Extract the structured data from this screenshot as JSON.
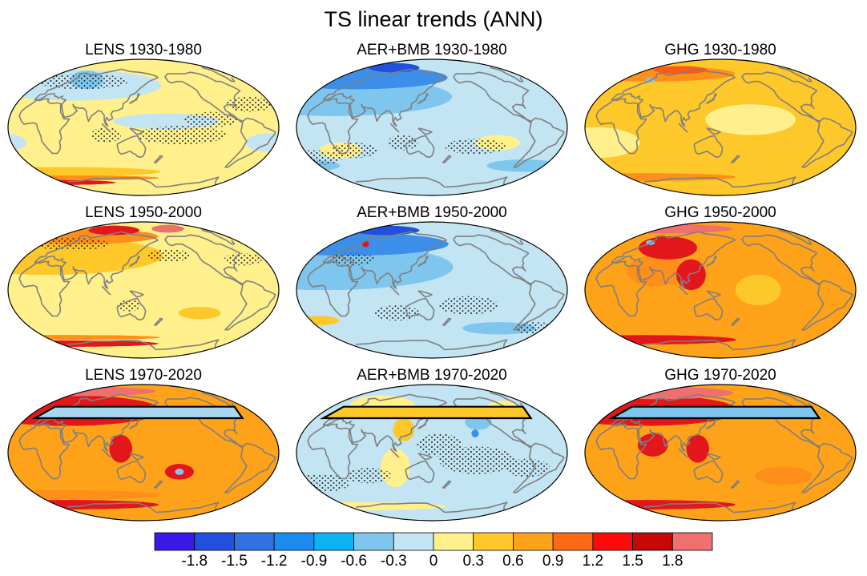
{
  "figure": {
    "title": "TS linear trends (ANN)"
  },
  "panels": [
    {
      "id": "lens-1930",
      "title": "LENS 1930-1980",
      "scenario": "LENS",
      "period": "1930-1980",
      "base": "#fff08c",
      "blobs": [
        {
          "c": "#c2e4f3",
          "lon": 180,
          "lat": 8,
          "rlon": 70,
          "rlat": 10
        },
        {
          "c": "#c2e4f3",
          "lon": 30,
          "lat": 55,
          "rlon": 150,
          "rlat": 20
        },
        {
          "c": "#7fc6ee",
          "lon": 45,
          "lat": 62,
          "rlon": 30,
          "rlat": 12
        },
        {
          "c": "#c2e4f3",
          "lon": -40,
          "lat": -20,
          "rlon": 30,
          "rlat": 12
        },
        {
          "c": "#fec72a",
          "lon": 0,
          "lat": -58,
          "rlon": 180,
          "rlat": 6
        },
        {
          "c": "#fe8f1a",
          "lon": 0,
          "lat": -66,
          "rlon": 180,
          "rlat": 3
        },
        {
          "c": "#e3161c",
          "lon": -30,
          "lat": -72,
          "rlon": 120,
          "rlat": 3
        }
      ],
      "stipple": true,
      "box": false
    },
    {
      "id": "aer-1930",
      "title": "AER+BMB 1930-1980",
      "scenario": "AER+BMB",
      "period": "1930-1980",
      "base": "#c2e4f3",
      "blobs": [
        {
          "c": "#7fc6ee",
          "lon": 0,
          "lat": 40,
          "rlon": 180,
          "rlat": 25
        },
        {
          "c": "#3b8fe8",
          "lon": 0,
          "lat": 65,
          "rlon": 180,
          "rlat": 15
        },
        {
          "c": "#2050dc",
          "lon": 60,
          "lat": 78,
          "rlon": 60,
          "rlat": 6
        },
        {
          "c": "#fff08c",
          "lon": -120,
          "lat": -20,
          "rlon": 30,
          "rlat": 10
        },
        {
          "c": "#fff08c",
          "lon": 20,
          "lat": -30,
          "rlon": 30,
          "rlat": 10
        },
        {
          "c": "#7fc6ee",
          "lon": -60,
          "lat": -50,
          "rlon": 60,
          "rlat": 8
        }
      ],
      "stipple": true,
      "box": false
    },
    {
      "id": "ghg-1930",
      "title": "GHG 1930-1980",
      "scenario": "GHG",
      "period": "1930-1980",
      "base": "#fec72a",
      "blobs": [
        {
          "c": "#fff08c",
          "lon": -170,
          "lat": 10,
          "rlon": 60,
          "rlat": 20
        },
        {
          "c": "#fff08c",
          "lon": -20,
          "lat": -20,
          "rlon": 60,
          "rlat": 20
        },
        {
          "c": "#fe8f1a",
          "lon": 0,
          "lat": 70,
          "rlon": 180,
          "rlat": 10
        },
        {
          "c": "#fe5a14",
          "lon": 60,
          "lat": 75,
          "rlon": 60,
          "rlat": 5
        },
        {
          "c": "#fe8f1a",
          "lon": 0,
          "lat": -65,
          "rlon": 180,
          "rlat": 5
        },
        {
          "c": "#7fc6ee",
          "lon": 20,
          "lat": 62,
          "rlon": 8,
          "rlat": 3
        }
      ],
      "stipple": false,
      "box": false
    },
    {
      "id": "lens-1950",
      "title": "LENS 1950-2000",
      "scenario": "LENS",
      "period": "1950-2000",
      "base": "#fff08c",
      "blobs": [
        {
          "c": "#fec72a",
          "lon": 0,
          "lat": 45,
          "rlon": 180,
          "rlat": 25
        },
        {
          "c": "#fe8f1a",
          "lon": 0,
          "lat": 70,
          "rlon": 180,
          "rlat": 10
        },
        {
          "c": "#e3161c",
          "lon": 80,
          "lat": 78,
          "rlon": 60,
          "rlat": 6
        },
        {
          "c": "#f07070",
          "lon": -150,
          "lat": 80,
          "rlon": 40,
          "rlat": 5
        },
        {
          "c": "#fec72a",
          "lon": -130,
          "lat": -30,
          "rlon": 30,
          "rlat": 8
        },
        {
          "c": "#e3161c",
          "lon": 0,
          "lat": -70,
          "rlon": 180,
          "rlat": 4
        },
        {
          "c": "#fe8f1a",
          "lon": 0,
          "lat": -62,
          "rlon": 180,
          "rlat": 3
        }
      ],
      "stipple": true,
      "box": false
    },
    {
      "id": "aer-1950",
      "title": "AER+BMB 1950-2000",
      "scenario": "AER+BMB",
      "period": "1950-2000",
      "base": "#c2e4f3",
      "blobs": [
        {
          "c": "#7fc6ee",
          "lon": 0,
          "lat": 30,
          "rlon": 180,
          "rlat": 30
        },
        {
          "c": "#3b8fe8",
          "lon": 0,
          "lat": 60,
          "rlon": 180,
          "rlat": 15
        },
        {
          "c": "#2050dc",
          "lon": 40,
          "lat": 78,
          "rlon": 80,
          "rlat": 6
        },
        {
          "c": "#e3161c",
          "lon": 30,
          "lat": 60,
          "rlon": 6,
          "rlat": 4
        },
        {
          "c": "#fec72a",
          "lon": -20,
          "lat": -40,
          "rlon": 30,
          "rlat": 6
        },
        {
          "c": "#7fc6ee",
          "lon": -100,
          "lat": -50,
          "rlon": 60,
          "rlat": 8
        }
      ],
      "stipple": true,
      "box": false
    },
    {
      "id": "ghg-1950",
      "title": "GHG 1950-2000",
      "scenario": "GHG",
      "period": "1950-2000",
      "base": "#fea21a",
      "blobs": [
        {
          "c": "#fec72a",
          "lon": -160,
          "lat": 0,
          "rlon": 30,
          "rlat": 20
        },
        {
          "c": "#fe8f1a",
          "lon": 60,
          "lat": 25,
          "rlon": 40,
          "rlat": 20
        },
        {
          "c": "#e3161c",
          "lon": 60,
          "lat": 55,
          "rlon": 50,
          "rlat": 15
        },
        {
          "c": "#e3161c",
          "lon": 110,
          "lat": 20,
          "rlon": 20,
          "rlat": 20
        },
        {
          "c": "#f07070",
          "lon": 0,
          "lat": 80,
          "rlon": 180,
          "rlat": 6
        },
        {
          "c": "#e3161c",
          "lon": 0,
          "lat": -65,
          "rlon": 180,
          "rlat": 6
        },
        {
          "c": "#7fc6ee",
          "lon": 20,
          "lat": 62,
          "rlon": 8,
          "rlat": 3
        }
      ],
      "stipple": false,
      "box": false
    },
    {
      "id": "lens-1970",
      "title": "LENS 1970-2020",
      "scenario": "LENS",
      "period": "1970-2020",
      "base": "#fea21a",
      "blobs": [
        {
          "c": "#e3161c",
          "lon": 20,
          "lat": 55,
          "rlon": 160,
          "rlat": 20
        },
        {
          "c": "#f07070",
          "lon": 0,
          "lat": 80,
          "rlon": 180,
          "rlat": 6
        },
        {
          "c": "#e3161c",
          "lon": 120,
          "lat": 5,
          "rlon": 15,
          "rlat": 18
        },
        {
          "c": "#e3161c",
          "lon": -160,
          "lat": -25,
          "rlon": 20,
          "rlat": 10
        },
        {
          "c": "#7fc6ee",
          "lon": -160,
          "lat": -25,
          "rlon": 6,
          "rlat": 4
        },
        {
          "c": "#e3161c",
          "lon": 0,
          "lat": -68,
          "rlon": 180,
          "rlat": 6
        },
        {
          "c": "#fe8f1a",
          "lon": 0,
          "lat": -55,
          "rlon": 180,
          "rlat": 6
        }
      ],
      "stipple": false,
      "box": true,
      "box_fill": "#a8d8f0"
    },
    {
      "id": "aer-1970",
      "title": "AER+BMB 1970-2020",
      "scenario": "AER+BMB",
      "period": "1970-2020",
      "base": "#c2e4f3",
      "blobs": [
        {
          "c": "#fff08c",
          "lon": 60,
          "lat": 60,
          "rlon": 60,
          "rlat": 15
        },
        {
          "c": "#fec72a",
          "lon": 110,
          "lat": 30,
          "rlon": 15,
          "rlat": 15
        },
        {
          "c": "#fff08c",
          "lon": 100,
          "lat": -20,
          "rlon": 20,
          "rlat": 25
        },
        {
          "c": "#7fc6ee",
          "lon": -140,
          "lat": 40,
          "rlon": 20,
          "rlat": 10
        },
        {
          "c": "#3b8fe8",
          "lon": -150,
          "lat": 25,
          "rlon": 5,
          "rlat": 5
        },
        {
          "c": "#fff08c",
          "lon": 0,
          "lat": -70,
          "rlon": 180,
          "rlat": 5
        },
        {
          "c": "#fff08c",
          "lon": -80,
          "lat": 60,
          "rlon": 30,
          "rlat": 8
        }
      ],
      "stipple": true,
      "box": true,
      "box_fill": "#fec72a"
    },
    {
      "id": "ghg-1970",
      "title": "GHG 1970-2020",
      "scenario": "GHG",
      "period": "1970-2020",
      "base": "#fea21a",
      "blobs": [
        {
          "c": "#e3161c",
          "lon": 20,
          "lat": 55,
          "rlon": 160,
          "rlat": 20
        },
        {
          "c": "#f07070",
          "lon": 0,
          "lat": 78,
          "rlon": 180,
          "rlat": 8
        },
        {
          "c": "#e3161c",
          "lon": 120,
          "lat": 5,
          "rlon": 15,
          "rlat": 18
        },
        {
          "c": "#e3161c",
          "lon": 60,
          "lat": 10,
          "rlon": 20,
          "rlat": 15
        },
        {
          "c": "#e3161c",
          "lon": 0,
          "lat": -68,
          "rlon": 180,
          "rlat": 6
        },
        {
          "c": "#fe8f1a",
          "lon": -120,
          "lat": -30,
          "rlon": 40,
          "rlat": 12
        }
      ],
      "stipple": false,
      "box": true,
      "box_fill": "#7fc6ee"
    }
  ],
  "colorbar": {
    "colors": [
      "#3a18ec",
      "#2050dc",
      "#3270e4",
      "#1a8cf0",
      "#0ab4f4",
      "#7fc6ee",
      "#c2e4f3",
      "#fff08c",
      "#fec72a",
      "#fea21a",
      "#fe6a14",
      "#fe0a0a",
      "#c80808",
      "#f07070"
    ],
    "labels": [
      "-1.8",
      "-1.5",
      "-1.2",
      "-0.9",
      "-0.6",
      "-0.3",
      "0",
      "0.3",
      "0.6",
      "0.9",
      "1.2",
      "1.5",
      "1.8"
    ]
  },
  "style": {
    "coast_color": "#7f7f7f",
    "box_color": "#000000"
  }
}
